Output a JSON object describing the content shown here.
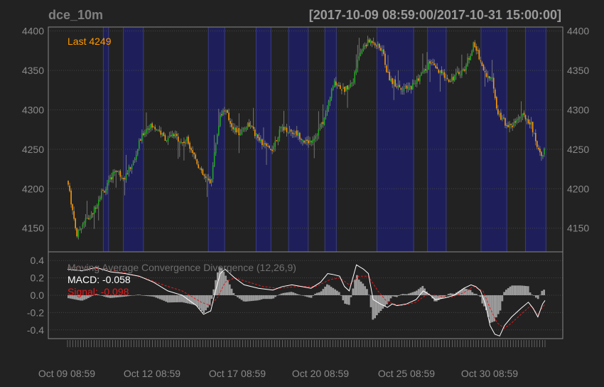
{
  "header": {
    "symbol": "dce_10m",
    "date_range": "[2017-10-09 08:59:00/2017-10-31 15:00:00]"
  },
  "colors": {
    "background": "#222222",
    "grid": "#444444",
    "frame": "#888888",
    "up": "#1fa81f",
    "down": "#ff9900",
    "shade": "#1e1f5a",
    "last": "#ff9900",
    "macd": "#ffffff",
    "signal": "#e31a1c",
    "hist": "#9a9a9a"
  },
  "chart_data": [
    {
      "type": "candlestick",
      "last_label": "Last 4249",
      "ylim": [
        4120,
        4405
      ],
      "yticks": [
        4150,
        4200,
        4250,
        4300,
        4350,
        4400
      ],
      "xlim": [
        0,
        100
      ],
      "close_path": [
        [
          0,
          4210
        ],
        [
          1,
          4175
        ],
        [
          2,
          4140
        ],
        [
          3,
          4155
        ],
        [
          4,
          4162
        ],
        [
          5,
          4165
        ],
        [
          6,
          4180
        ],
        [
          7,
          4195
        ],
        [
          8,
          4200
        ],
        [
          9,
          4212
        ],
        [
          10,
          4225
        ],
        [
          11,
          4218
        ],
        [
          12,
          4215
        ],
        [
          13,
          4226
        ],
        [
          14,
          4235
        ],
        [
          15,
          4258
        ],
        [
          16,
          4272
        ],
        [
          17,
          4280
        ],
        [
          18,
          4278
        ],
        [
          19,
          4276
        ],
        [
          20,
          4266
        ],
        [
          21,
          4262
        ],
        [
          22,
          4268
        ],
        [
          23,
          4265
        ],
        [
          24,
          4258
        ],
        [
          25,
          4262
        ],
        [
          26,
          4250
        ],
        [
          27,
          4236
        ],
        [
          28,
          4220
        ],
        [
          29,
          4212
        ],
        [
          30,
          4208
        ],
        [
          31,
          4255
        ],
        [
          32,
          4295
        ],
        [
          33,
          4300
        ],
        [
          34,
          4285
        ],
        [
          35,
          4275
        ],
        [
          36,
          4270
        ],
        [
          37,
          4278
        ],
        [
          38,
          4282
        ],
        [
          39,
          4272
        ],
        [
          40,
          4262
        ],
        [
          41,
          4256
        ],
        [
          42,
          4250
        ],
        [
          43,
          4252
        ],
        [
          44,
          4268
        ],
        [
          45,
          4278
        ],
        [
          46,
          4275
        ],
        [
          47,
          4272
        ],
        [
          48,
          4270
        ],
        [
          49,
          4265
        ],
        [
          50,
          4258
        ],
        [
          51,
          4262
        ],
        [
          52,
          4268
        ],
        [
          53,
          4278
        ],
        [
          54,
          4292
        ],
        [
          55,
          4318
        ],
        [
          56,
          4336
        ],
        [
          57,
          4330
        ],
        [
          58,
          4325
        ],
        [
          59,
          4332
        ],
        [
          60,
          4340
        ],
        [
          61,
          4368
        ],
        [
          62,
          4380
        ],
        [
          63,
          4386
        ],
        [
          64,
          4388
        ],
        [
          65,
          4380
        ],
        [
          66,
          4375
        ],
        [
          67,
          4345
        ],
        [
          68,
          4336
        ],
        [
          69,
          4332
        ],
        [
          70,
          4328
        ],
        [
          71,
          4326
        ],
        [
          72,
          4330
        ],
        [
          73,
          4336
        ],
        [
          74,
          4345
        ],
        [
          75,
          4350
        ],
        [
          76,
          4362
        ],
        [
          77,
          4352
        ],
        [
          78,
          4346
        ],
        [
          79,
          4344
        ],
        [
          80,
          4338
        ],
        [
          81,
          4342
        ],
        [
          82,
          4348
        ],
        [
          83,
          4350
        ],
        [
          84,
          4366
        ],
        [
          85,
          4382
        ],
        [
          86,
          4372
        ],
        [
          87,
          4352
        ],
        [
          88,
          4342
        ],
        [
          89,
          4338
        ],
        [
          90,
          4300
        ],
        [
          91,
          4288
        ],
        [
          92,
          4282
        ],
        [
          93,
          4278
        ],
        [
          94,
          4288
        ],
        [
          95,
          4292
        ],
        [
          96,
          4290
        ],
        [
          97,
          4284
        ],
        [
          98,
          4262
        ],
        [
          99,
          4244
        ],
        [
          100,
          4249
        ]
      ],
      "shaded_ranges": [
        [
          7.5,
          8.6
        ],
        [
          11.7,
          15.9
        ],
        [
          29.5,
          32.9
        ],
        [
          39.5,
          42.6
        ],
        [
          46.3,
          50.4
        ],
        [
          53.9,
          56.3
        ],
        [
          64.8,
          72.5
        ],
        [
          75.4,
          79.3
        ],
        [
          86.6,
          92.0
        ],
        [
          95.9,
          100.2
        ]
      ],
      "x_tick_labels": [
        "Oct 09 08:59",
        "Oct 12 08:59",
        "Oct 17 08:59",
        "Oct 20 08:59",
        "Oct 25 08:59",
        "Oct 30 08:59"
      ]
    },
    {
      "type": "line",
      "title": "Moving Average Convergence Divergence (12,26,9)",
      "ylim": [
        -0.5,
        0.5
      ],
      "yticks": [
        0.4,
        0.2,
        0.0,
        -0.2,
        -0.4
      ],
      "ytick_labels": [
        "0.4",
        "0.2",
        "0.0",
        "-0.2",
        "-0.4"
      ],
      "series": [
        {
          "name": "MACD",
          "last_label": "MACD: -0.058",
          "points": [
            [
              0,
              0.3
            ],
            [
              3,
              0.28
            ],
            [
              6,
              0.32
            ],
            [
              9,
              0.27
            ],
            [
              12,
              0.25
            ],
            [
              15,
              0.22
            ],
            [
              18,
              0.15
            ],
            [
              21,
              0.05
            ],
            [
              24,
              0.0
            ],
            [
              27,
              -0.12
            ],
            [
              28.5,
              -0.22
            ],
            [
              30,
              -0.18
            ],
            [
              31,
              0.05
            ],
            [
              32,
              0.25
            ],
            [
              33,
              0.3
            ],
            [
              35,
              0.2
            ],
            [
              37,
              0.12
            ],
            [
              40,
              0.08
            ],
            [
              43,
              0.06
            ],
            [
              45,
              0.1
            ],
            [
              47,
              0.12
            ],
            [
              49,
              0.1
            ],
            [
              51,
              0.08
            ],
            [
              53,
              0.15
            ],
            [
              54.5,
              0.25
            ],
            [
              55.5,
              0.24
            ],
            [
              57,
              0.22
            ],
            [
              58,
              0.1
            ],
            [
              59,
              0.05
            ],
            [
              60.5,
              0.35
            ],
            [
              62,
              0.3
            ],
            [
              63,
              0.25
            ],
            [
              64,
              -0.05
            ],
            [
              65.5,
              -0.1
            ],
            [
              67,
              -0.14
            ],
            [
              68,
              -0.1
            ],
            [
              69,
              -0.12
            ],
            [
              71,
              -0.1
            ],
            [
              73,
              -0.05
            ],
            [
              74.5,
              0.05
            ],
            [
              76,
              0.0
            ],
            [
              77,
              -0.05
            ],
            [
              79,
              -0.03
            ],
            [
              81,
              0.0
            ],
            [
              83,
              0.08
            ],
            [
              84.5,
              0.12
            ],
            [
              85.5,
              0.1
            ],
            [
              86.5,
              0.05
            ],
            [
              87.5,
              -0.1
            ],
            [
              88.5,
              -0.35
            ],
            [
              89.5,
              -0.45
            ],
            [
              90.5,
              -0.47
            ],
            [
              91.5,
              -0.35
            ],
            [
              93,
              -0.25
            ],
            [
              95,
              -0.15
            ],
            [
              96.5,
              -0.08
            ],
            [
              97.5,
              -0.15
            ],
            [
              98.5,
              -0.25
            ],
            [
              99.5,
              -0.1
            ],
            [
              100,
              -0.06
            ]
          ]
        },
        {
          "name": "Signal",
          "last_label": "Signal: -0.098",
          "points": [
            [
              0,
              0.32
            ],
            [
              4,
              0.32
            ],
            [
              8,
              0.3
            ],
            [
              12,
              0.26
            ],
            [
              16,
              0.2
            ],
            [
              20,
              0.12
            ],
            [
              24,
              0.05
            ],
            [
              28,
              -0.08
            ],
            [
              30,
              -0.12
            ],
            [
              31.5,
              -0.02
            ],
            [
              33,
              0.15
            ],
            [
              35,
              0.2
            ],
            [
              38,
              0.15
            ],
            [
              41,
              0.1
            ],
            [
              44,
              0.08
            ],
            [
              48,
              0.1
            ],
            [
              52,
              0.1
            ],
            [
              55,
              0.18
            ],
            [
              57,
              0.2
            ],
            [
              59,
              0.12
            ],
            [
              61,
              0.22
            ],
            [
              63,
              0.22
            ],
            [
              65,
              0.05
            ],
            [
              67,
              -0.08
            ],
            [
              70,
              -0.12
            ],
            [
              73,
              -0.08
            ],
            [
              75,
              0.0
            ],
            [
              77,
              0.0
            ],
            [
              80,
              -0.03
            ],
            [
              83,
              0.03
            ],
            [
              85,
              0.1
            ],
            [
              87,
              0.05
            ],
            [
              88.5,
              -0.15
            ],
            [
              90,
              -0.32
            ],
            [
              91.5,
              -0.38
            ],
            [
              93,
              -0.32
            ],
            [
              95,
              -0.22
            ],
            [
              97,
              -0.12
            ],
            [
              98.5,
              -0.22
            ],
            [
              100,
              -0.1
            ]
          ]
        }
      ]
    }
  ]
}
